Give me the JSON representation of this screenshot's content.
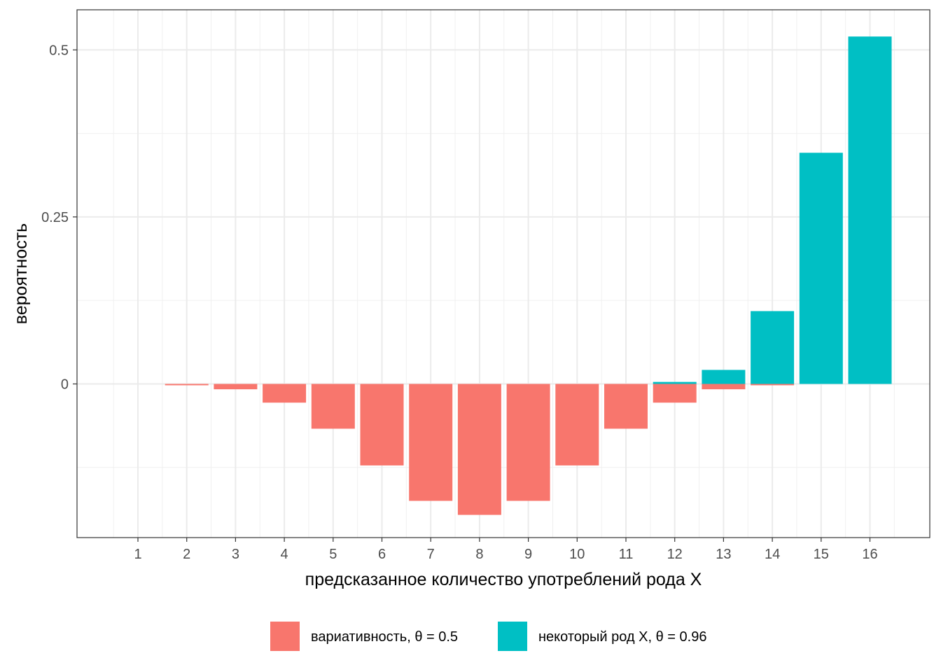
{
  "chart_data": {
    "type": "bar",
    "xlabel": "предсказанное количество употреблений рода X",
    "ylabel": "вероятность",
    "categories": [
      "1",
      "2",
      "3",
      "4",
      "5",
      "6",
      "7",
      "8",
      "9",
      "10",
      "11",
      "12",
      "13",
      "14",
      "15",
      "16"
    ],
    "ylim": [
      -0.23,
      0.56
    ],
    "yticks": [
      {
        "value": 0,
        "label": "0"
      },
      {
        "value": 0.25,
        "label": "0.25"
      },
      {
        "value": 0.5,
        "label": "0.5"
      }
    ],
    "grid": true,
    "legend_position": "bottom",
    "series": [
      {
        "name": "вариативность, θ = 0.5",
        "color": "#F8766D",
        "values": [
          0,
          -0.002,
          -0.008,
          -0.028,
          -0.067,
          -0.122,
          -0.175,
          -0.196,
          -0.175,
          -0.122,
          -0.067,
          -0.028,
          -0.008,
          -0.002,
          0,
          0
        ]
      },
      {
        "name": "некоторый род X, θ = 0.96",
        "color": "#00BFC4",
        "values": [
          0,
          0,
          0,
          0,
          0,
          0,
          0,
          0,
          0,
          0,
          0,
          0.003,
          0.021,
          0.109,
          0.346,
          0.52
        ]
      }
    ]
  }
}
